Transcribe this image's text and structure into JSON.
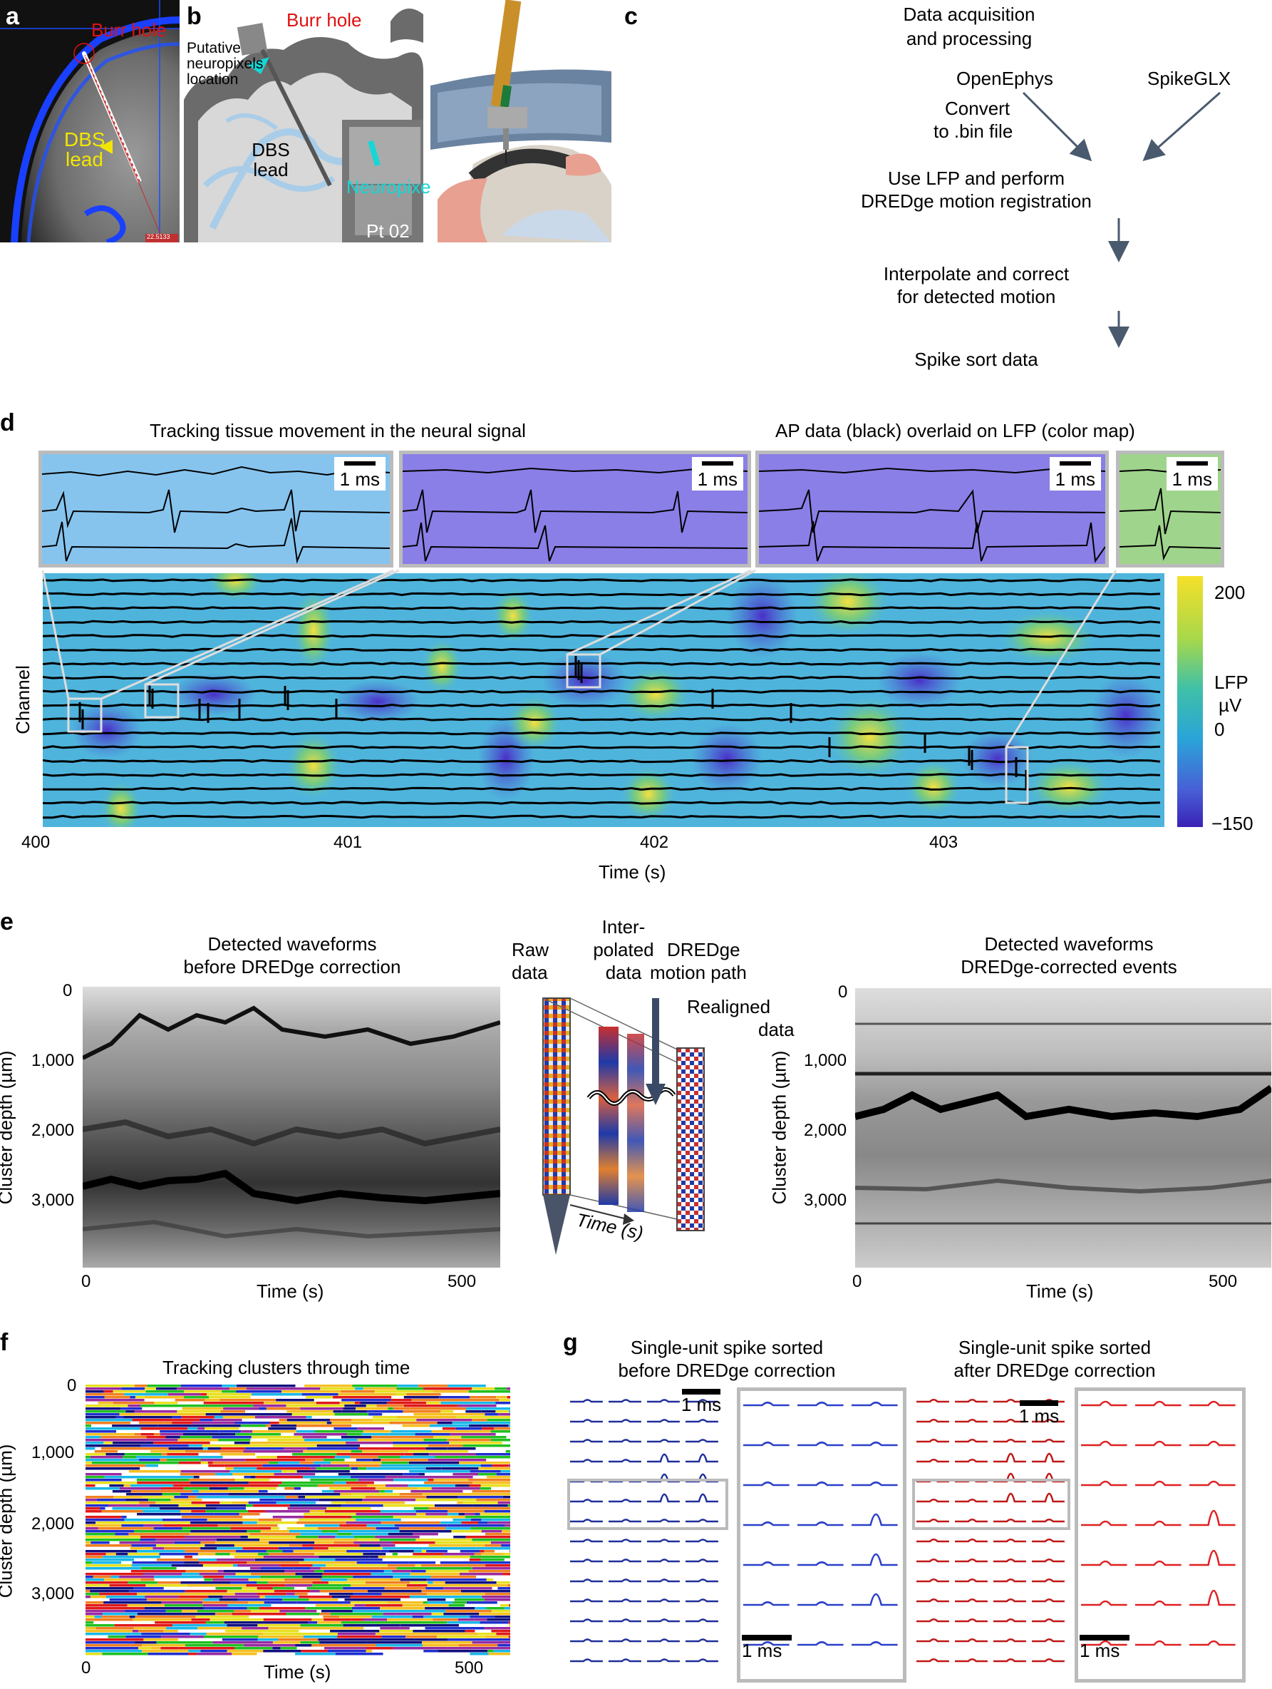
{
  "labels": {
    "a": "a",
    "b": "b",
    "c": "c",
    "d": "d",
    "e": "e",
    "f": "f",
    "g": "g"
  },
  "panel_a": {
    "burr_hole": "Burr hole",
    "dbs_lead_1": "DBS",
    "dbs_lead_2": "lead",
    "badge": "22.5133"
  },
  "panel_b": {
    "burr_hole": "Burr hole",
    "putative_1": "Putative",
    "putative_2": "neuropixels",
    "putative_3": "location",
    "dbs_1": "DBS",
    "dbs_2": "lead",
    "neuropixels": "Neuropixels",
    "pt": "Pt 02"
  },
  "panel_c": {
    "title_1": "Data acquisition",
    "title_2": "and processing",
    "openephys": "OpenEphys",
    "spikeglx": "SpikeGLX",
    "convert_1": "Convert",
    "convert_2": "to .bin file",
    "step1_1": "Use LFP and perform",
    "step1_2": "DREDge motion registration",
    "step2_1": "Interpolate and correct",
    "step2_2": "for detected motion",
    "step3": "Spike sort data"
  },
  "panel_d": {
    "title_left": "Tracking tissue movement in the neural signal",
    "title_right": "AP data (black) overlaid on LFP (color map)",
    "scale": "1 ms",
    "ylabel": "Channel",
    "xlabel": "Time (s)",
    "colorbar_label_1": "LFP",
    "colorbar_label_2": "µV",
    "x_ticks": [
      "400",
      "401",
      "402",
      "403"
    ],
    "cbar_ticks": [
      "200",
      "0",
      "−150"
    ]
  },
  "panel_e": {
    "left_title_1": "Detected waveforms",
    "left_title_2": "before DREDge correction",
    "right_title_1": "Detected waveforms",
    "right_title_2": "DREDge-corrected events",
    "ylabel": "Cluster depth (µm)",
    "xlabel": "Time (s)",
    "y_ticks": [
      "0",
      "1,000",
      "2,000",
      "3,000"
    ],
    "x_ticks": [
      "0",
      "500"
    ],
    "raw": "Raw",
    "raw2": "data",
    "interp_1": "Inter-",
    "interp_2": "polated",
    "interp_3": "data",
    "dredge_1": "DREDge",
    "dredge_2": "motion path",
    "realigned_1": "Realigned",
    "realigned_2": "data",
    "time_arrow": "Time (s)"
  },
  "panel_f": {
    "title": "Tracking clusters through time",
    "ylabel": "Cluster depth (µm)",
    "xlabel": "Time (s)",
    "y_ticks": [
      "0",
      "1,000",
      "2,000",
      "3,000"
    ],
    "x_ticks": [
      "0",
      "500"
    ]
  },
  "panel_g": {
    "left_title_1": "Single-unit spike sorted",
    "left_title_2": "before DREDge correction",
    "right_title_1": "Single-unit spike sorted",
    "right_title_2": "after DREDge correction",
    "scale": "1 ms"
  },
  "colors": {
    "blue": "#1f2f9a",
    "red": "#c01818",
    "cyan": "#17d6d6",
    "yellow": "#f2e600",
    "burr": "#e01010"
  }
}
